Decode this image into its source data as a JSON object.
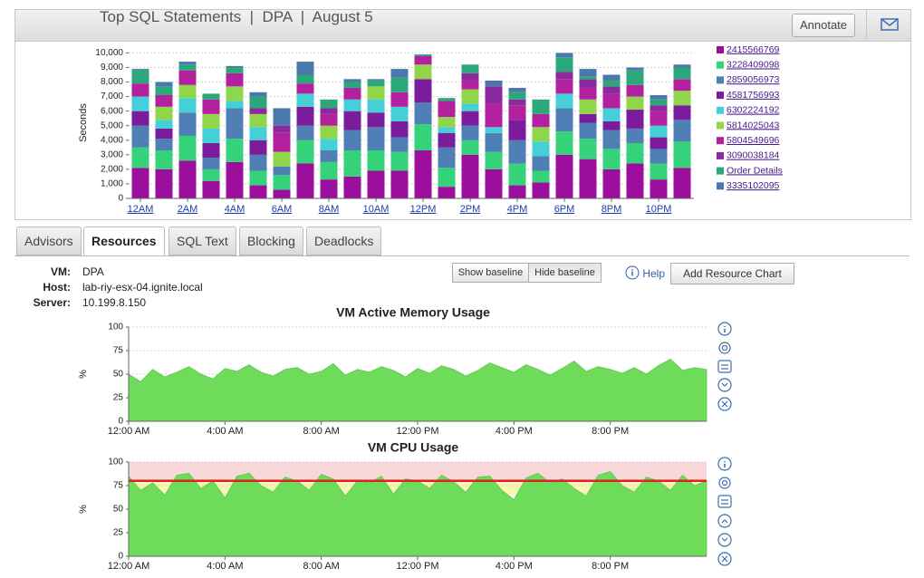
{
  "header": {
    "title": "Top SQL Statements  |  DPA  |  August 5",
    "annotate": "Annotate"
  },
  "tabs": [
    "Advisors",
    "Resources",
    "SQL Text",
    "Blocking",
    "Deadlocks"
  ],
  "active_tab": 1,
  "info": {
    "labels": [
      "VM:",
      "Host:",
      "Server:"
    ],
    "values": [
      "DPA",
      "lab-riy-esx-04.ignite.local",
      "10.199.8.150"
    ]
  },
  "buttons": {
    "show_baseline": "Show baseline",
    "hide_baseline": "Hide baseline",
    "help": "Help",
    "add_chart": "Add Resource Chart"
  },
  "chart_data": [
    {
      "type": "stacked_bar",
      "ylabel": "Seconds",
      "categories": [
        "12AM",
        null,
        "2AM",
        null,
        "4AM",
        null,
        "6AM",
        null,
        "8AM",
        null,
        "10AM",
        null,
        "12PM",
        null,
        "2PM",
        null,
        "4PM",
        null,
        "6PM",
        null,
        "8PM",
        null,
        "10PM",
        null
      ],
      "series": [
        {
          "name": "2415566769",
          "color": "#9c0f9c",
          "values": [
            2100,
            2000,
            2600,
            1200,
            2500,
            900,
            600,
            2400,
            1300,
            1500,
            1900,
            1900,
            3300,
            800,
            3000,
            2000,
            900,
            1100,
            3000,
            2700,
            2000,
            2400,
            1300,
            2100
          ]
        },
        {
          "name": "3228409098",
          "color": "#35d27a",
          "values": [
            1400,
            1300,
            1700,
            800,
            1600,
            1000,
            1000,
            1600,
            1200,
            1800,
            1400,
            1300,
            1800,
            1300,
            1000,
            1200,
            1500,
            800,
            1600,
            1400,
            1400,
            1400,
            1100,
            1800
          ]
        },
        {
          "name": "2859056973",
          "color": "#4f7fb5",
          "values": [
            1500,
            800,
            1600,
            800,
            2100,
            1100,
            600,
            1000,
            800,
            1400,
            1600,
            1000,
            1500,
            1400,
            1000,
            1300,
            1600,
            1000,
            1600,
            1100,
            1300,
            1000,
            1000,
            1500
          ]
        },
        {
          "name": "4581756993",
          "color": "#7a1c9c",
          "values": [
            1000,
            700,
            0,
            1000,
            0,
            1000,
            0,
            1300,
            0,
            1300,
            1000,
            1100,
            1600,
            1000,
            1000,
            0,
            1400,
            0,
            0,
            600,
            600,
            1300,
            800,
            1000
          ]
        },
        {
          "name": "6302224192",
          "color": "#45cfd6",
          "values": [
            1000,
            600,
            1000,
            1000,
            500,
            900,
            0,
            900,
            800,
            800,
            900,
            1000,
            0,
            400,
            500,
            400,
            0,
            1000,
            1000,
            0,
            900,
            0,
            800,
            0
          ]
        },
        {
          "name": "5814025043",
          "color": "#8fd64a",
          "values": [
            0,
            900,
            900,
            1000,
            1000,
            900,
            1000,
            0,
            900,
            0,
            900,
            0,
            1000,
            700,
            1000,
            0,
            0,
            1000,
            0,
            1000,
            0,
            900,
            0,
            1000
          ]
        },
        {
          "name": "5804549696",
          "color": "#b3219f",
          "values": [
            900,
            800,
            1000,
            1000,
            900,
            0,
            1300,
            700,
            800,
            800,
            0,
            1000,
            600,
            1100,
            600,
            1600,
            1000,
            900,
            1000,
            800,
            1000,
            800,
            1000,
            800
          ]
        },
        {
          "name": "3090038184",
          "color": "#8a2a9e",
          "values": [
            0,
            0,
            0,
            0,
            0,
            400,
            500,
            0,
            400,
            0,
            0,
            0,
            0,
            0,
            500,
            1200,
            400,
            0,
            500,
            600,
            500,
            0,
            400,
            0
          ]
        },
        {
          "name": "Order Details",
          "color": "#2aa87a",
          "values": [
            900,
            600,
            400,
            400,
            400,
            800,
            0,
            600,
            600,
            400,
            400,
            1000,
            100,
            200,
            600,
            0,
            500,
            1000,
            1000,
            200,
            400,
            1000,
            400,
            800
          ]
        },
        {
          "name": "3335102095",
          "color": "#4a78ac",
          "values": [
            100,
            300,
            200,
            0,
            100,
            300,
            1200,
            900,
            0,
            200,
            100,
            600,
            0,
            0,
            0,
            400,
            300,
            0,
            300,
            500,
            400,
            200,
            300,
            200
          ]
        }
      ],
      "ylim": [
        0,
        10400
      ],
      "yticks": [
        0,
        {
          "value": 1000,
          "label": "1,000"
        },
        {
          "value": 2000,
          "label": "2,000"
        },
        {
          "value": 3000,
          "label": "3,000"
        },
        {
          "value": 4000,
          "label": "4,000"
        },
        {
          "value": 5000,
          "label": "5,000"
        },
        {
          "value": 6000,
          "label": "6,000"
        },
        {
          "value": 7000,
          "label": "7,000"
        },
        {
          "value": 8000,
          "label": "8,000"
        },
        {
          "value": 9000,
          "label": "9,000"
        },
        {
          "value": 10000,
          "label": "10,000"
        }
      ],
      "grid": true
    },
    {
      "type": "area",
      "title": "VM Active Memory Usage",
      "ylabel": "%",
      "color": "#6edb5a",
      "x": [
        0,
        0.5,
        1,
        1.5,
        2,
        2.5,
        3,
        3.5,
        4,
        4.5,
        5,
        5.5,
        6,
        6.5,
        7,
        7.5,
        8,
        8.5,
        9,
        9.5,
        10,
        10.5,
        11,
        11.5,
        12,
        12.5,
        13,
        13.5,
        14,
        14.5,
        15,
        15.5,
        16,
        16.5,
        17,
        17.5,
        18,
        18.5,
        19,
        19.5,
        20,
        20.5,
        21,
        21.5,
        22,
        22.5,
        23,
        23.5,
        24
      ],
      "values": [
        50,
        42,
        55,
        47,
        52,
        58,
        50,
        45,
        56,
        53,
        60,
        52,
        48,
        55,
        57,
        50,
        53,
        61,
        49,
        55,
        52,
        58,
        54,
        47,
        56,
        51,
        59,
        55,
        48,
        54,
        62,
        57,
        52,
        60,
        55,
        49,
        56,
        64,
        53,
        58,
        55,
        51,
        57,
        50,
        59,
        66,
        54,
        57,
        55
      ],
      "xlim": [
        0,
        24
      ],
      "ylim": [
        0,
        100
      ],
      "yticks": [
        0,
        25,
        50,
        75,
        100
      ],
      "xticks": [
        {
          "value": 0,
          "label": "12:00 AM"
        },
        {
          "value": 4,
          "label": "4:00 AM"
        },
        {
          "value": 8,
          "label": "8:00 AM"
        },
        {
          "value": 12,
          "label": "12:00 PM"
        },
        {
          "value": 16,
          "label": "4:00 PM"
        },
        {
          "value": 20,
          "label": "8:00 PM"
        }
      ],
      "grid": true
    },
    {
      "type": "area",
      "title": "VM CPU Usage",
      "ylabel": "%",
      "color": "#6edb5a",
      "x": [
        0,
        0.5,
        1,
        1.5,
        2,
        2.5,
        3,
        3.5,
        4,
        4.5,
        5,
        5.5,
        6,
        6.5,
        7,
        7.5,
        8,
        8.5,
        9,
        9.5,
        10,
        10.5,
        11,
        11.5,
        12,
        12.5,
        13,
        13.5,
        14,
        14.5,
        15,
        15.5,
        16,
        16.5,
        17,
        17.5,
        18,
        18.5,
        19,
        19.5,
        20,
        20.5,
        21,
        21.5,
        22,
        22.5,
        23,
        23.5,
        24
      ],
      "values": [
        85,
        70,
        78,
        65,
        86,
        88,
        72,
        80,
        62,
        85,
        88,
        75,
        68,
        84,
        80,
        70,
        87,
        82,
        64,
        80,
        78,
        85,
        66,
        82,
        80,
        72,
        86,
        79,
        68,
        84,
        85,
        70,
        60,
        83,
        88,
        78,
        82,
        72,
        64,
        86,
        90,
        75,
        68,
        84,
        80,
        70,
        86,
        75,
        80
      ],
      "xlim": [
        0,
        24
      ],
      "ylim": [
        0,
        100
      ],
      "yticks": [
        0,
        25,
        50,
        75,
        100
      ],
      "xticks": [
        {
          "value": 0,
          "label": "12:00 AM"
        },
        {
          "value": 4,
          "label": "4:00 AM"
        },
        {
          "value": 8,
          "label": "8:00 AM"
        },
        {
          "value": 12,
          "label": "12:00 PM"
        },
        {
          "value": 16,
          "label": "4:00 PM"
        },
        {
          "value": 20,
          "label": "8:00 PM"
        }
      ],
      "warning": 65,
      "critical": 80,
      "grid": true
    }
  ]
}
